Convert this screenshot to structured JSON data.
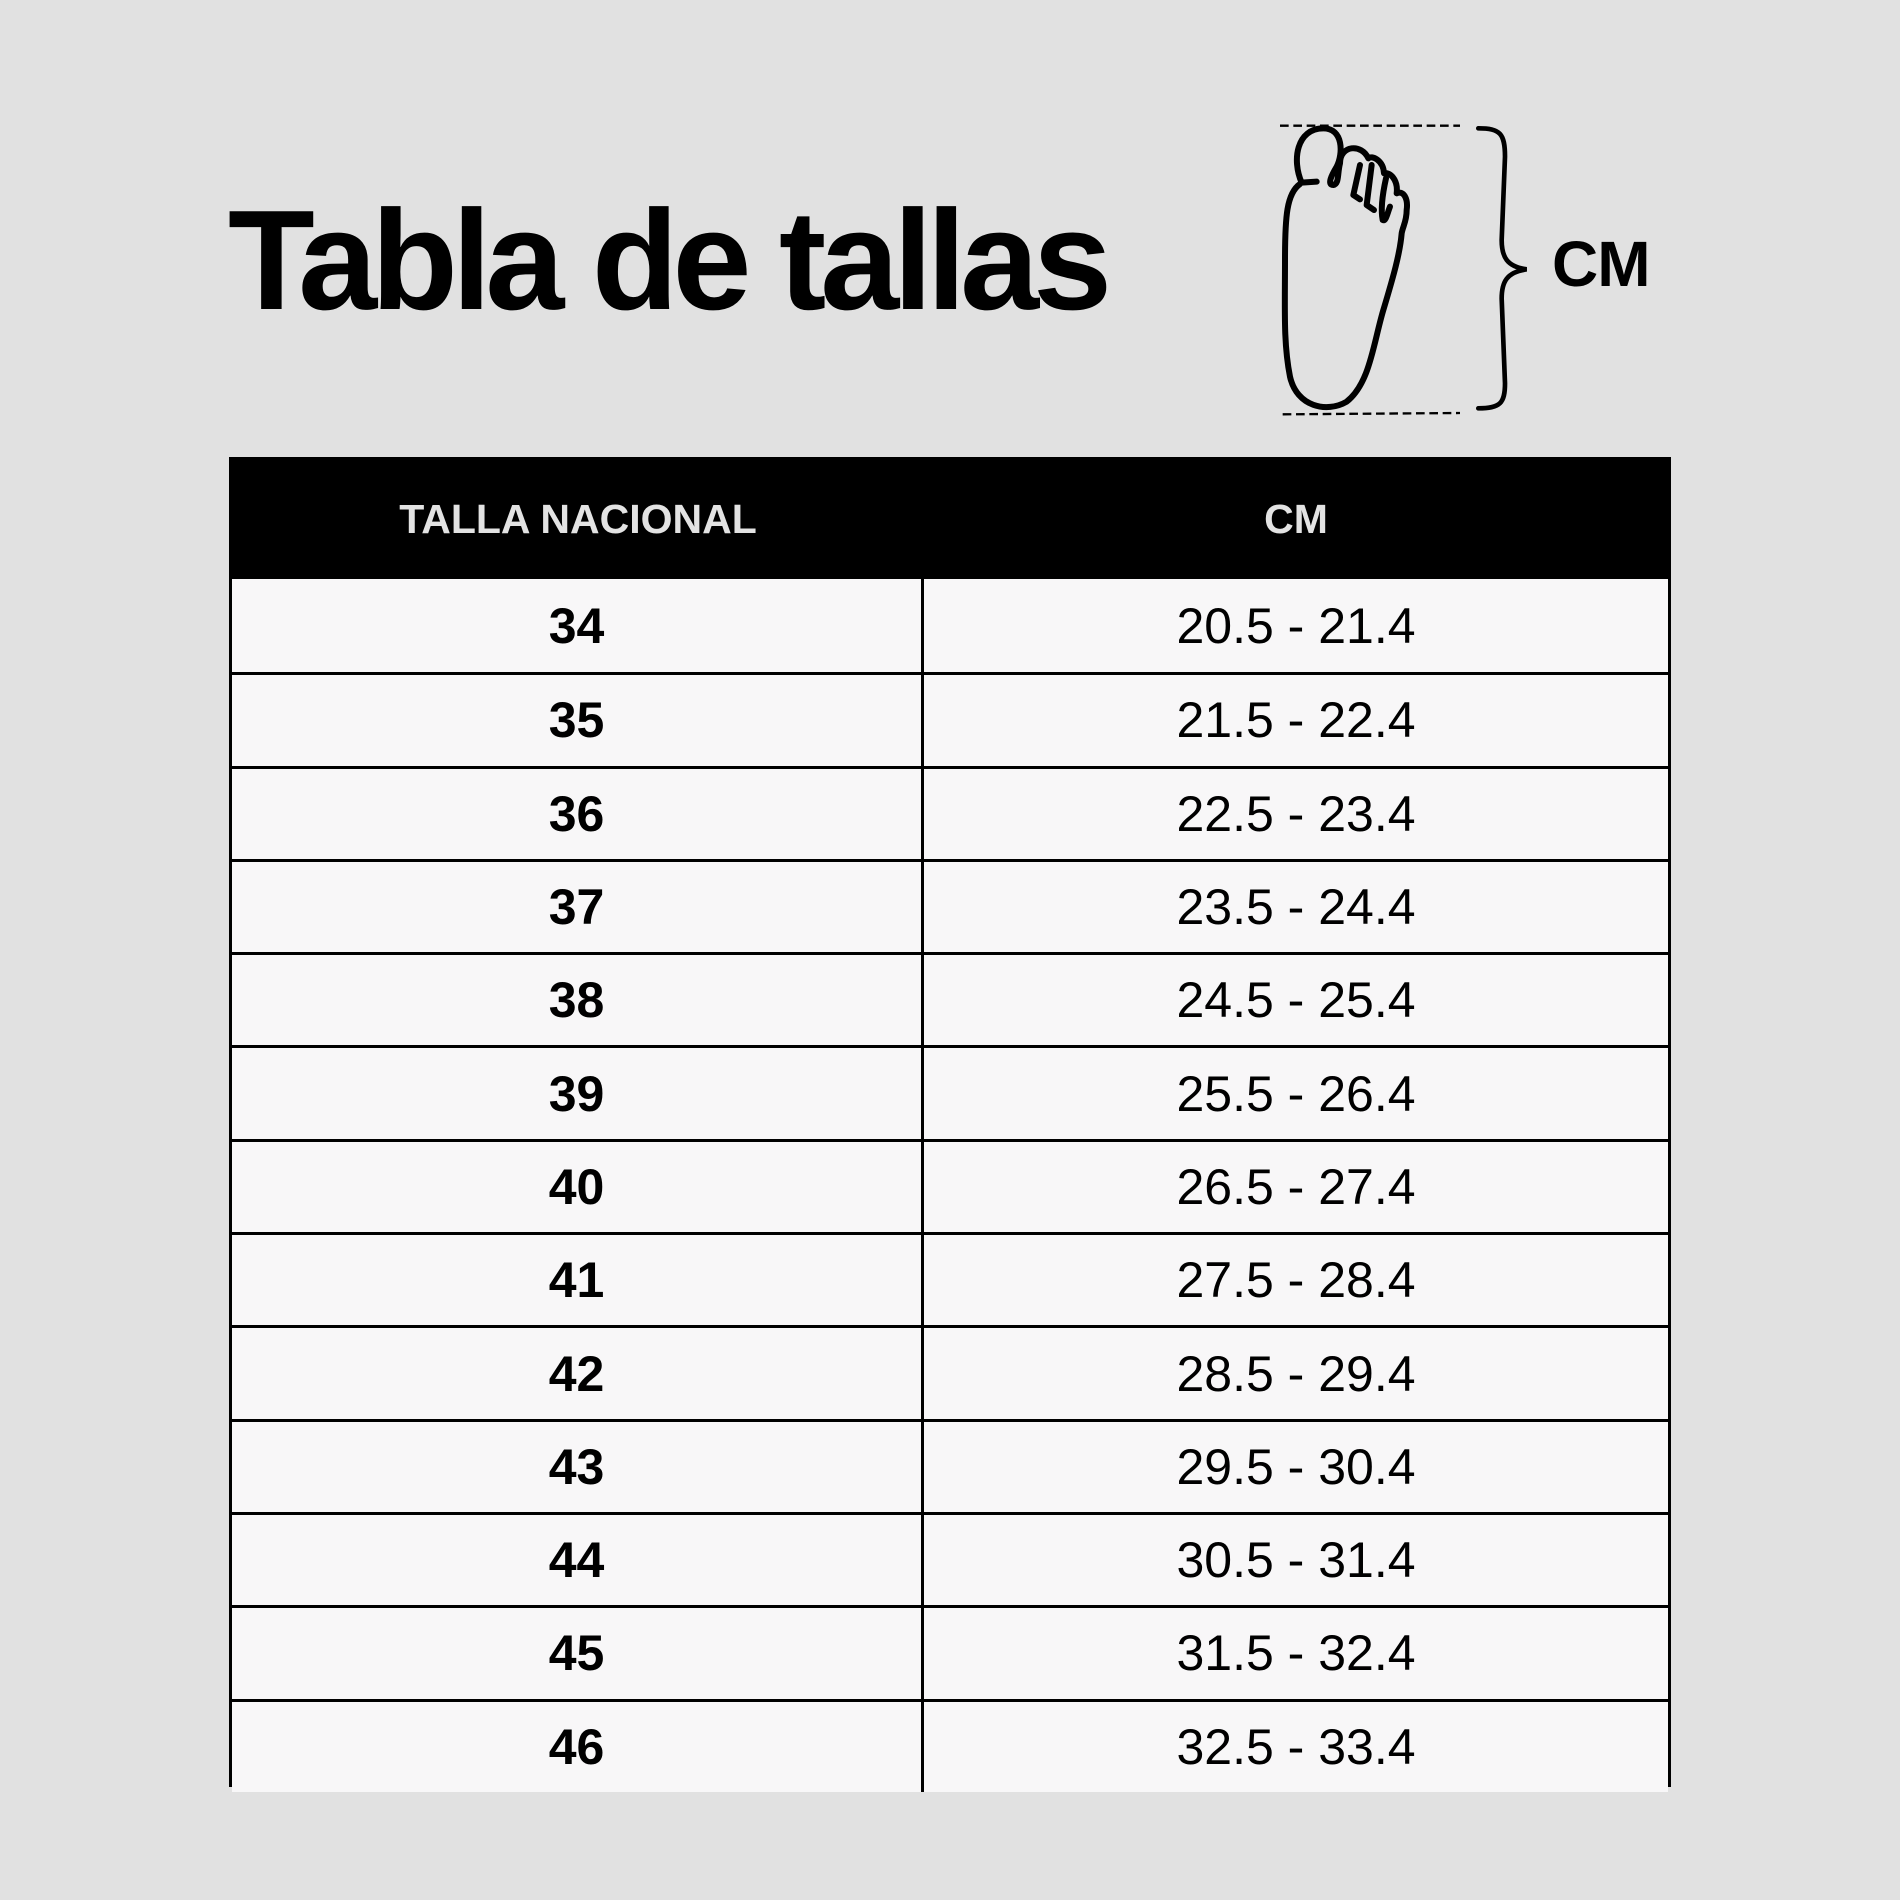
{
  "title": "Tabla de tallas",
  "diagram": {
    "unit_label": "CM",
    "icon": "foot-icon"
  },
  "table": {
    "headers": [
      "TALLA NACIONAL",
      "CM"
    ],
    "rows": [
      [
        "34",
        "20.5 - 21.4"
      ],
      [
        "35",
        "21.5 - 22.4"
      ],
      [
        "36",
        "22.5 - 23.4"
      ],
      [
        "37",
        "23.5 - 24.4"
      ],
      [
        "38",
        "24.5 - 25.4"
      ],
      [
        "39",
        "25.5 - 26.4"
      ],
      [
        "40",
        "26.5 - 27.4"
      ],
      [
        "41",
        "27.5 - 28.4"
      ],
      [
        "42",
        "28.5 - 29.4"
      ],
      [
        "43",
        "29.5 - 30.4"
      ],
      [
        "44",
        "30.5 - 31.4"
      ],
      [
        "45",
        "31.5 - 32.4"
      ],
      [
        "46",
        "32.5 - 33.4"
      ]
    ]
  },
  "colors": {
    "background": "#e1e1e1",
    "header_bg": "#000000",
    "header_text": "#e3e3e3",
    "cell_bg": "#f8f7f8"
  }
}
